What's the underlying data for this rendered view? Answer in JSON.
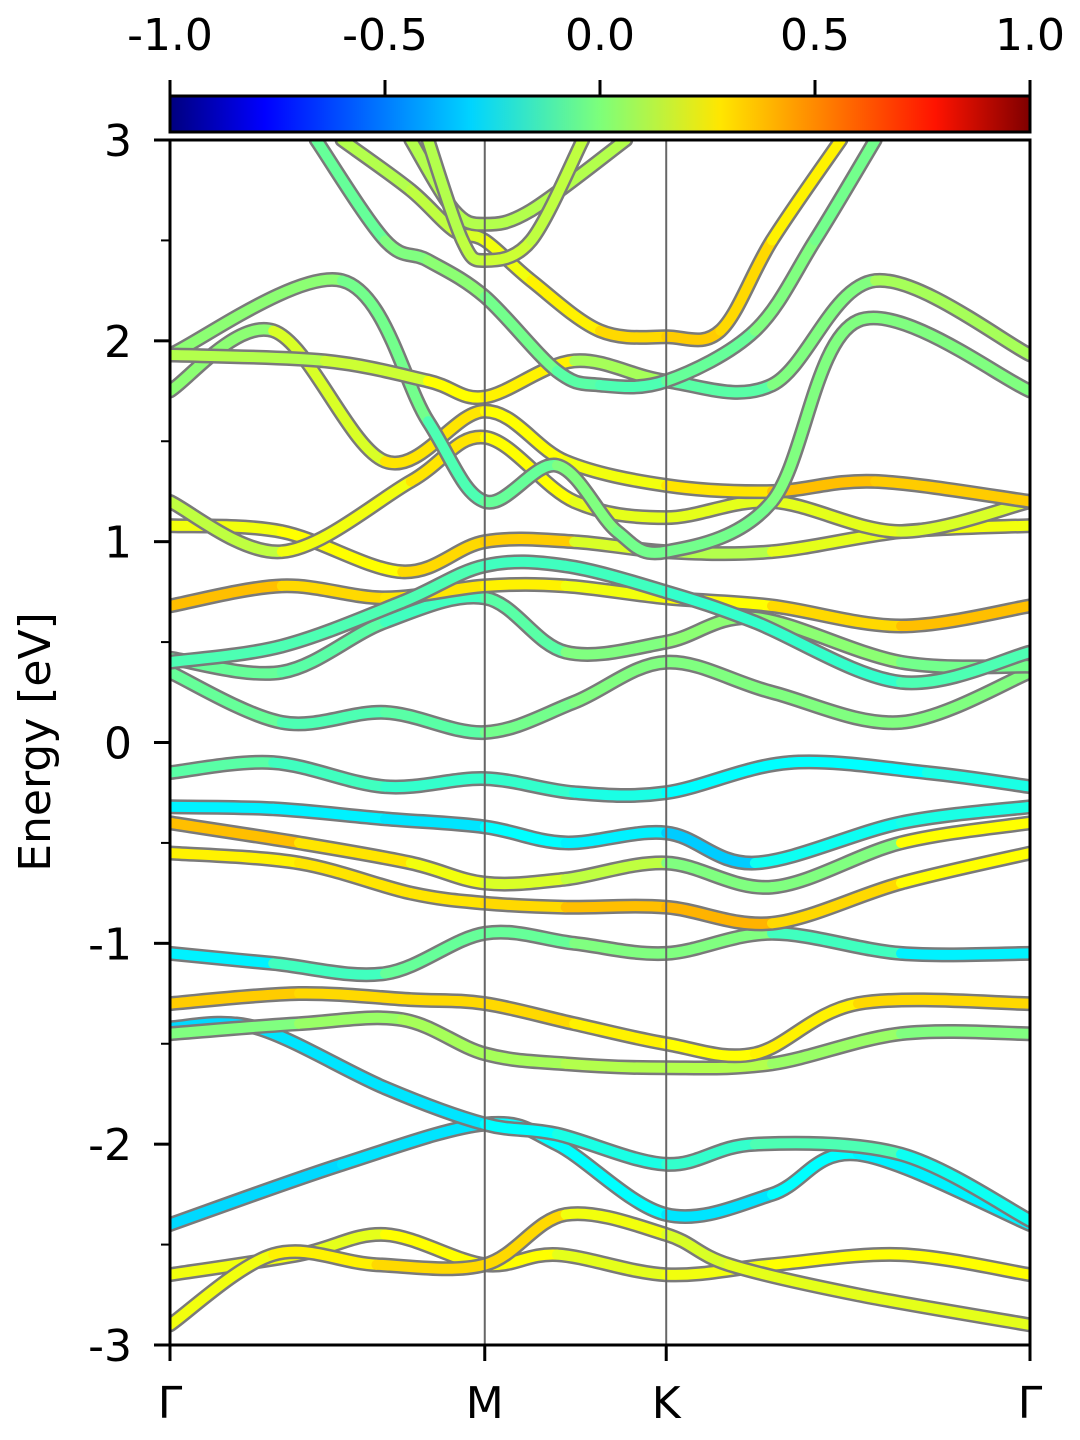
{
  "chart_data": {
    "type": "line",
    "ylabel": "Energy [eV]",
    "ylim": [
      -3,
      3
    ],
    "yticks": [
      {
        "value": 3,
        "label": "3"
      },
      {
        "value": 2,
        "label": "2"
      },
      {
        "value": 1,
        "label": "1"
      },
      {
        "value": 0,
        "label": "0"
      },
      {
        "value": -1,
        "label": "-1"
      },
      {
        "value": -2,
        "label": "-2"
      },
      {
        "value": -3,
        "label": "-3"
      }
    ],
    "yminor": [
      2.5,
      1.5,
      0.5,
      -0.5,
      -1.5,
      -2.5
    ],
    "kpath": [
      {
        "label": "Γ",
        "pos": 0.0
      },
      {
        "label": "M",
        "pos": 0.366
      },
      {
        "label": "K",
        "pos": 0.577
      },
      {
        "label": "Γ",
        "pos": 1.0
      }
    ],
    "colorbar": {
      "range": [
        -1.0,
        1.0
      ],
      "ticks": [
        {
          "value": -1.0,
          "label": "-1.0"
        },
        {
          "value": -0.5,
          "label": "-0.5"
        },
        {
          "value": 0.0,
          "label": "0.0"
        },
        {
          "value": 0.5,
          "label": "0.5"
        },
        {
          "value": 1.0,
          "label": "1.0"
        }
      ],
      "colormap": "jet"
    },
    "series": [
      {
        "x": [
          0.0,
          0.2,
          0.366,
          0.45,
          0.577,
          0.7,
          0.8,
          1.0
        ],
        "y": [
          -2.4,
          -2.1,
          -1.9,
          -2.0,
          -2.35,
          -2.25,
          -2.05,
          -2.4
        ],
        "c": [
          -0.35,
          -0.3,
          -0.3,
          -0.2,
          -0.3,
          -0.3,
          -0.2,
          -0.35
        ]
      },
      {
        "x": [
          0.0,
          0.15,
          0.25,
          0.366,
          0.45,
          0.577,
          0.7,
          0.85,
          1.0
        ],
        "y": [
          -2.65,
          -2.55,
          -2.45,
          -2.6,
          -2.55,
          -2.65,
          -2.6,
          -2.55,
          -2.65
        ],
        "c": [
          0.25,
          0.2,
          0.2,
          0.3,
          0.2,
          0.2,
          0.25,
          0.25,
          0.25
        ]
      },
      {
        "x": [
          0.0,
          0.12,
          0.24,
          0.366,
          0.46,
          0.577,
          0.65,
          0.8,
          1.0
        ],
        "y": [
          -2.9,
          -2.55,
          -2.6,
          -2.6,
          -2.35,
          -2.45,
          -2.6,
          -2.75,
          -2.9
        ],
        "c": [
          0.2,
          0.25,
          0.3,
          0.35,
          0.3,
          0.15,
          0.2,
          0.2,
          0.2
        ]
      },
      {
        "x": [
          0.0,
          0.1,
          0.25,
          0.366,
          0.45,
          0.577,
          0.68,
          0.85,
          1.0
        ],
        "y": [
          -1.42,
          -1.42,
          -1.72,
          -1.9,
          -1.95,
          -2.1,
          -2.0,
          -2.05,
          -2.38
        ],
        "c": [
          -0.35,
          -0.3,
          -0.3,
          -0.3,
          -0.2,
          -0.2,
          -0.1,
          -0.1,
          -0.35
        ]
      },
      {
        "x": [
          0.0,
          0.15,
          0.27,
          0.366,
          0.46,
          0.577,
          0.7,
          0.85,
          1.0
        ],
        "y": [
          -1.45,
          -1.4,
          -1.38,
          -1.55,
          -1.6,
          -1.62,
          -1.6,
          -1.45,
          -1.45
        ],
        "c": [
          0.0,
          0.0,
          0.1,
          0.05,
          0.1,
          0.1,
          0.1,
          0.0,
          0.0
        ]
      },
      {
        "x": [
          0.0,
          0.15,
          0.28,
          0.366,
          0.47,
          0.577,
          0.68,
          0.8,
          1.0
        ],
        "y": [
          -1.3,
          -1.25,
          -1.28,
          -1.3,
          -1.4,
          -1.5,
          -1.55,
          -1.3,
          -1.3
        ],
        "c": [
          0.35,
          0.35,
          0.3,
          0.35,
          0.3,
          0.25,
          0.25,
          0.3,
          0.35
        ]
      },
      {
        "x": [
          0.0,
          0.12,
          0.25,
          0.366,
          0.47,
          0.577,
          0.7,
          0.85,
          1.0
        ],
        "y": [
          -1.05,
          -1.1,
          -1.15,
          -0.95,
          -1.0,
          -1.05,
          -0.95,
          -1.05,
          -1.05
        ],
        "c": [
          -0.3,
          -0.25,
          0.0,
          -0.1,
          0.0,
          0.0,
          0.0,
          -0.25,
          -0.3
        ]
      },
      {
        "x": [
          0.0,
          0.15,
          0.28,
          0.366,
          0.46,
          0.577,
          0.7,
          0.85,
          1.0
        ],
        "y": [
          -0.55,
          -0.6,
          -0.75,
          -0.8,
          -0.82,
          -0.82,
          -0.9,
          -0.7,
          -0.55
        ],
        "c": [
          0.25,
          0.3,
          0.3,
          0.3,
          0.35,
          0.4,
          0.4,
          0.25,
          0.25
        ]
      },
      {
        "x": [
          0.0,
          0.15,
          0.28,
          0.366,
          0.46,
          0.577,
          0.7,
          0.85,
          1.0
        ],
        "y": [
          -0.4,
          -0.5,
          -0.6,
          -0.7,
          -0.68,
          -0.6,
          -0.72,
          -0.5,
          -0.4
        ],
        "c": [
          0.4,
          0.35,
          0.25,
          0.2,
          0.15,
          0.1,
          -0.1,
          0.1,
          0.4
        ]
      },
      {
        "x": [
          0.0,
          0.12,
          0.25,
          0.366,
          0.46,
          0.577,
          0.68,
          0.85,
          1.0
        ],
        "y": [
          -0.32,
          -0.33,
          -0.38,
          -0.42,
          -0.5,
          -0.45,
          -0.6,
          -0.4,
          -0.32
        ],
        "c": [
          -0.3,
          -0.25,
          -0.3,
          -0.3,
          -0.2,
          -0.35,
          -0.35,
          -0.1,
          -0.3
        ]
      },
      {
        "x": [
          0.0,
          0.12,
          0.25,
          0.366,
          0.47,
          0.577,
          0.72,
          0.88,
          1.0
        ],
        "y": [
          -0.15,
          -0.1,
          -0.22,
          -0.18,
          -0.25,
          -0.25,
          -0.1,
          -0.15,
          -0.22
        ],
        "c": [
          -0.1,
          -0.05,
          -0.2,
          -0.1,
          -0.2,
          -0.2,
          -0.3,
          -0.2,
          -0.2
        ]
      },
      {
        "x": [
          0.0,
          0.13,
          0.25,
          0.366,
          0.47,
          0.577,
          0.7,
          0.85,
          1.0
        ],
        "y": [
          0.35,
          0.1,
          0.15,
          0.05,
          0.2,
          0.4,
          0.25,
          0.1,
          0.35
        ],
        "c": [
          0.0,
          -0.1,
          -0.1,
          -0.05,
          0.0,
          0.0,
          0.0,
          0.0,
          0.0
        ]
      },
      {
        "x": [
          0.0,
          0.13,
          0.25,
          0.366,
          0.46,
          0.577,
          0.68,
          0.85,
          1.0
        ],
        "y": [
          0.42,
          0.35,
          0.6,
          0.72,
          0.45,
          0.5,
          0.62,
          0.4,
          0.38
        ],
        "c": [
          -0.05,
          -0.05,
          -0.1,
          -0.15,
          0.0,
          0.0,
          0.05,
          0.0,
          -0.05
        ]
      },
      {
        "x": [
          0.0,
          0.13,
          0.25,
          0.366,
          0.46,
          0.577,
          0.7,
          0.85,
          1.0
        ],
        "y": [
          0.68,
          0.78,
          0.72,
          0.78,
          0.78,
          0.72,
          0.68,
          0.58,
          0.68
        ],
        "c": [
          0.4,
          0.35,
          0.3,
          0.3,
          0.25,
          0.2,
          0.3,
          0.35,
          0.4
        ]
      },
      {
        "x": [
          0.0,
          0.13,
          0.27,
          0.366,
          0.46,
          0.577,
          0.68,
          0.85,
          1.0
        ],
        "y": [
          0.4,
          0.48,
          0.7,
          0.88,
          0.88,
          0.75,
          0.6,
          0.3,
          0.45
        ],
        "c": [
          -0.1,
          -0.1,
          -0.1,
          -0.1,
          -0.15,
          -0.1,
          -0.2,
          -0.1,
          -0.1
        ]
      },
      {
        "x": [
          0.0,
          0.13,
          0.27,
          0.366,
          0.47,
          0.577,
          0.7,
          0.85,
          1.0
        ],
        "y": [
          1.08,
          1.05,
          0.85,
          1.0,
          1.0,
          0.95,
          0.95,
          1.05,
          1.08
        ],
        "c": [
          0.25,
          0.2,
          0.3,
          0.35,
          0.35,
          0.0,
          0.2,
          0.2,
          0.25
        ]
      },
      {
        "x": [
          0.0,
          0.13,
          0.28,
          0.366,
          0.47,
          0.577,
          0.7,
          0.85,
          1.0
        ],
        "y": [
          1.2,
          0.95,
          1.3,
          1.52,
          1.2,
          1.12,
          1.2,
          1.05,
          1.2
        ],
        "c": [
          0.1,
          0.15,
          0.3,
          0.3,
          0.2,
          0.2,
          0.2,
          0.2,
          0.15
        ]
      },
      {
        "x": [
          0.0,
          0.12,
          0.25,
          0.366,
          0.46,
          0.577,
          0.7,
          0.82,
          1.0
        ],
        "y": [
          1.75,
          2.05,
          1.4,
          1.65,
          1.4,
          1.28,
          1.25,
          1.3,
          1.2
        ],
        "c": [
          0.0,
          0.05,
          0.3,
          0.3,
          0.2,
          0.25,
          0.35,
          0.4,
          0.3
        ]
      },
      {
        "x": [
          0.0,
          0.2,
          0.3,
          0.366,
          0.45,
          0.52,
          0.577,
          0.7,
          0.8,
          1.0
        ],
        "y": [
          1.93,
          2.3,
          1.6,
          1.2,
          1.38,
          1.05,
          0.95,
          1.2,
          2.1,
          1.75
        ],
        "c": [
          0.0,
          0.05,
          -0.1,
          -0.1,
          0.0,
          0.0,
          -0.05,
          0.0,
          0.0,
          0.0
        ]
      },
      {
        "x": [
          0.0,
          0.18,
          0.3,
          0.366,
          0.47,
          0.577,
          0.7,
          0.82,
          1.0
        ],
        "y": [
          1.93,
          1.9,
          1.8,
          1.72,
          1.9,
          1.8,
          1.78,
          2.3,
          1.93
        ],
        "c": [
          0.1,
          0.1,
          0.2,
          0.3,
          0.25,
          -0.1,
          -0.05,
          0.05,
          0.1
        ]
      },
      {
        "x": [
          0.17,
          0.25,
          0.3,
          0.366,
          0.45,
          0.5,
          0.577,
          0.68,
          0.75,
          0.82
        ],
        "y": [
          3.0,
          2.5,
          2.4,
          2.22,
          1.85,
          1.78,
          1.8,
          2.05,
          2.5,
          3.0
        ],
        "c": [
          -0.05,
          -0.05,
          0.05,
          0.0,
          -0.05,
          -0.1,
          -0.1,
          0.0,
          0.0,
          -0.05
        ]
      },
      {
        "x": [
          0.2,
          0.28,
          0.33,
          0.366,
          0.42,
          0.5,
          0.577,
          0.64,
          0.7,
          0.78
        ],
        "y": [
          3.0,
          2.75,
          2.55,
          2.5,
          2.3,
          2.05,
          2.02,
          2.05,
          2.5,
          3.0
        ],
        "c": [
          0.1,
          0.1,
          0.15,
          0.2,
          0.25,
          0.3,
          0.35,
          0.35,
          0.3,
          0.25
        ]
      },
      {
        "x": [
          0.28,
          0.33,
          0.366,
          0.42,
          0.53
        ],
        "y": [
          3.0,
          2.65,
          2.58,
          2.65,
          3.0
        ],
        "c": [
          0.1,
          0.1,
          0.1,
          0.1,
          0.1
        ]
      },
      {
        "x": [
          0.3,
          0.34,
          0.366,
          0.42,
          0.48
        ],
        "y": [
          3.0,
          2.5,
          2.4,
          2.5,
          3.0
        ],
        "c": [
          0.1,
          0.1,
          0.15,
          0.15,
          0.1
        ]
      }
    ]
  }
}
